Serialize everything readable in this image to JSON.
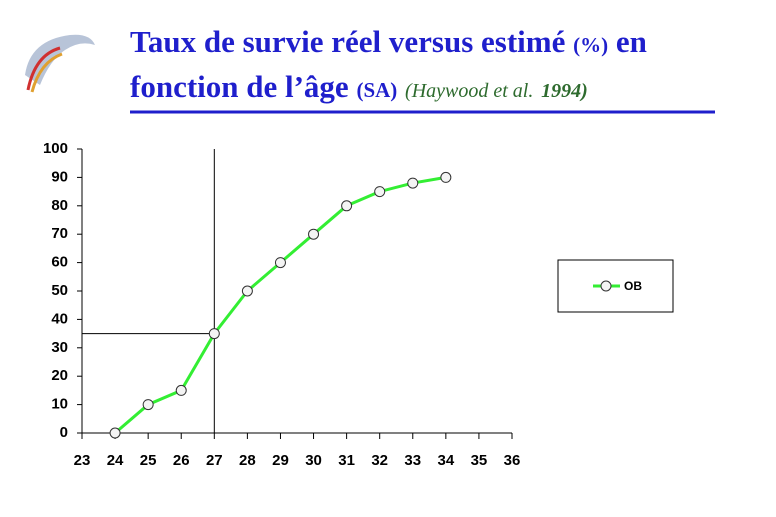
{
  "chart_data": {
    "type": "line",
    "title_parts": [
      "Taux de survie réel versus estimé",
      "(%)",
      "en",
      "fonction de l’âge",
      "(SA)",
      "(Haywood et al.",
      "1994)"
    ],
    "x": [
      24,
      25,
      26,
      27,
      28,
      29,
      30,
      31,
      32,
      33,
      34
    ],
    "series": [
      {
        "name": "OB",
        "color": "#33ee33",
        "values": [
          0,
          10,
          15,
          35,
          50,
          60,
          70,
          80,
          85,
          88,
          90
        ]
      }
    ],
    "xlim": [
      23,
      36
    ],
    "xticks": [
      23,
      24,
      25,
      26,
      27,
      28,
      29,
      30,
      31,
      32,
      33,
      34,
      35,
      36
    ],
    "ylim": [
      0,
      100
    ],
    "yticks": [
      0,
      10,
      20,
      30,
      40,
      50,
      60,
      70,
      80,
      90,
      100
    ],
    "reference_point": {
      "x": 27,
      "y": 35
    },
    "legend": "right"
  }
}
